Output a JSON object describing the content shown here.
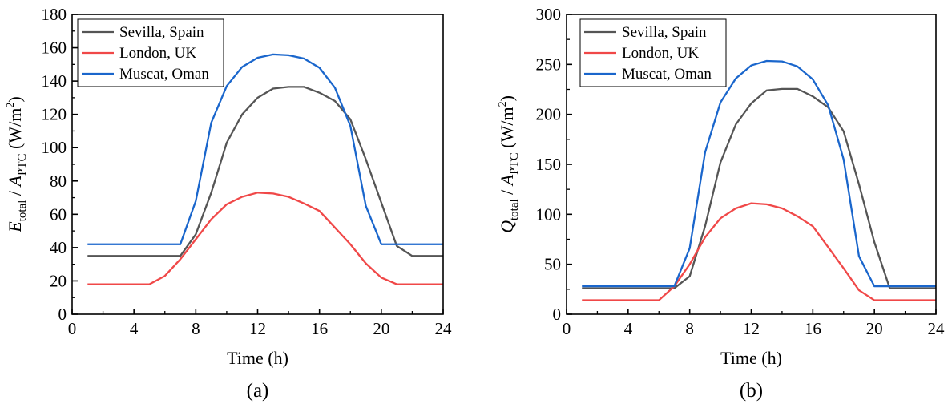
{
  "chart_data": [
    {
      "type": "line",
      "panel_label": "(a)",
      "xlabel": "Time (h)",
      "ylabel": {
        "var": "E",
        "var_sub": "total",
        "div": " / ",
        "area": "A",
        "area_sub": "PTC",
        "unit_pre": " (W/m",
        "unit_sup": "2",
        "unit_post": ")"
      },
      "xlim": [
        0,
        24
      ],
      "ylim": [
        0,
        180
      ],
      "xticks": [
        0,
        4,
        8,
        12,
        16,
        20,
        24
      ],
      "yticks": [
        0,
        20,
        40,
        60,
        80,
        100,
        120,
        140,
        160,
        180
      ],
      "legend_position": "top-left",
      "x": [
        1,
        2,
        3,
        4,
        5,
        6,
        7,
        8,
        9,
        10,
        11,
        12,
        13,
        14,
        15,
        16,
        17,
        18,
        19,
        20,
        21,
        22,
        23,
        24
      ],
      "series": [
        {
          "name": "Sevilla, Spain",
          "color": "#555555",
          "values": [
            35,
            35,
            35,
            35,
            35,
            35,
            35,
            48,
            73,
            103,
            120,
            130,
            135.5,
            136.5,
            136.5,
            133,
            128,
            117,
            93,
            67,
            41,
            35,
            35,
            35
          ]
        },
        {
          "name": "London, UK",
          "color": "#f04848",
          "values": [
            18,
            18,
            18,
            18,
            18,
            23,
            33,
            45,
            57,
            66,
            70.5,
            73,
            72.5,
            70.5,
            66.5,
            62,
            52,
            42,
            30.5,
            22,
            18,
            18,
            18,
            18
          ]
        },
        {
          "name": "Muscat, Oman",
          "color": "#1a66cc",
          "values": [
            42,
            42,
            42,
            42,
            42,
            42,
            42,
            68,
            115,
            137,
            148.5,
            154,
            156,
            155.5,
            153.5,
            148,
            136,
            113,
            65,
            42,
            42,
            42,
            42,
            42
          ]
        }
      ]
    },
    {
      "type": "line",
      "panel_label": "(b)",
      "xlabel": "Time (h)",
      "ylabel": {
        "var": "Q",
        "var_sub": "total",
        "div": " / ",
        "area": "A",
        "area_sub": "PTC",
        "unit_pre": " (W/m",
        "unit_sup": "2",
        "unit_post": ")"
      },
      "xlim": [
        0,
        24
      ],
      "ylim": [
        0,
        300
      ],
      "xticks": [
        0,
        4,
        8,
        12,
        16,
        20,
        24
      ],
      "yticks": [
        0,
        50,
        100,
        150,
        200,
        250,
        300
      ],
      "legend_position": "top-left",
      "x": [
        1,
        2,
        3,
        4,
        5,
        6,
        7,
        8,
        9,
        10,
        11,
        12,
        13,
        14,
        15,
        16,
        17,
        18,
        19,
        20,
        21,
        22,
        23,
        24
      ],
      "series": [
        {
          "name": "Sevilla, Spain",
          "color": "#555555",
          "values": [
            26,
            26,
            26,
            26,
            26,
            26,
            26,
            38,
            88,
            152,
            190,
            211,
            224,
            225.5,
            225.5,
            218,
            207,
            183,
            130,
            72,
            26,
            26,
            26,
            26
          ]
        },
        {
          "name": "London, UK",
          "color": "#f04848",
          "values": [
            14,
            14,
            14,
            14,
            14,
            14,
            28,
            50,
            77,
            96,
            106,
            111,
            110,
            106,
            98,
            88,
            67,
            46,
            24,
            14,
            14,
            14,
            14,
            14
          ]
        },
        {
          "name": "Muscat, Oman",
          "color": "#1a66cc",
          "values": [
            28,
            28,
            28,
            28,
            28,
            28,
            28,
            66,
            162,
            212,
            236,
            249,
            253.5,
            253,
            248,
            235,
            209,
            155,
            58,
            28,
            28,
            28,
            28,
            28
          ]
        }
      ]
    }
  ]
}
